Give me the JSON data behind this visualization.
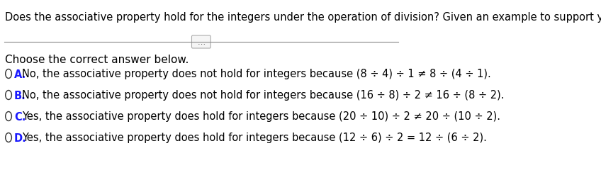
{
  "title": "Does the associative property hold for the integers under the operation of division? Given an example to support your answer.",
  "subtitle": "Choose the correct answer below.",
  "options": [
    {
      "letter": "A.",
      "color": "#1a1aff",
      "text_before": "No, the associative property does not hold for integers because ",
      "math": "(8 ÷ 4) ÷ 1 ≠ 8 ÷ (4 ÷ 1).",
      "bold_letter": true
    },
    {
      "letter": "B.",
      "color": "#1a1aff",
      "text_before": "No, the associative property does not hold for integers because ",
      "math": "(16 ÷ 8) ÷ 2 ≠ 16 ÷ (8 ÷ 2).",
      "bold_letter": true
    },
    {
      "letter": "C.",
      "color": "#1a1aff",
      "text_before": "Yes, the associative property does hold for integers because ",
      "math": "(20 ÷ 10) ÷ 2 ≠ 20 ÷ (10 ÷ 2).",
      "bold_letter": true
    },
    {
      "letter": "D.",
      "color": "#1a1aff",
      "text_before": "Yes, the associative property does hold for integers because ",
      "math": "(12 ÷ 6) ÷ 2 = 12 ÷ (6 ÷ 2).",
      "bold_letter": true
    }
  ],
  "background_color": "#ffffff",
  "text_color": "#000000",
  "option_font_size": 10.5,
  "title_font_size": 10.5,
  "subtitle_font_size": 11
}
